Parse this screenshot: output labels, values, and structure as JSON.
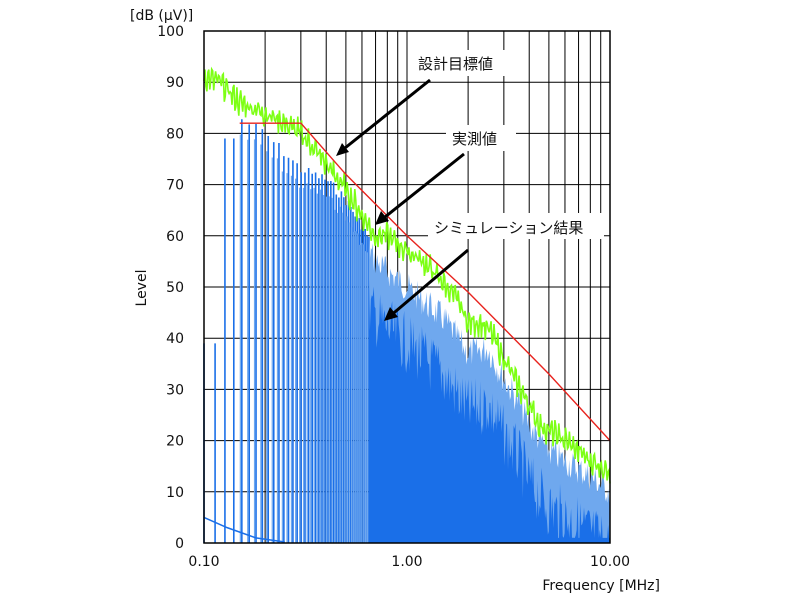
{
  "chart_data": {
    "type": "line",
    "y_unit_label": "[dB (μV)]",
    "ylabel": "Level",
    "xlabel": "Frequency [MHz]",
    "x_scale": "log",
    "xlim": [
      0.1,
      10
    ],
    "ylim": [
      0,
      100
    ],
    "grid": true,
    "x_tick_labels": [
      "0.10",
      "1.00",
      "10.00"
    ],
    "x_ticks": [
      0.1,
      1,
      10
    ],
    "y_ticks": [
      0,
      10,
      20,
      30,
      40,
      50,
      60,
      70,
      80,
      90,
      100
    ],
    "colors": {
      "limit": "#e8231e",
      "measured": "#7dff14",
      "simulation": "#1a6fe8",
      "simulation_light": "#6fa8ee",
      "grid": "#000000"
    },
    "series": [
      {
        "key": "limit",
        "x": [
          0.15,
          0.3,
          0.5,
          1.0,
          2.0,
          5.0,
          10.0
        ],
        "y": [
          82,
          82,
          72,
          60,
          49,
          33,
          20
        ]
      },
      {
        "key": "measured",
        "x": [
          0.1,
          0.12,
          0.15,
          0.2,
          0.25,
          0.3,
          0.35,
          0.4,
          0.5,
          0.6,
          0.7,
          0.8,
          1.0,
          1.2,
          1.5,
          1.8,
          2.0,
          2.3,
          2.6,
          3.0,
          3.5,
          4.0,
          4.5,
          5.0,
          6.0,
          7.0,
          8.0,
          10.0
        ],
        "y": [
          91,
          90,
          86,
          84,
          82,
          80,
          77,
          74,
          69,
          64,
          60,
          60,
          57,
          55,
          51,
          47,
          43,
          43,
          41,
          36,
          31,
          27,
          23,
          22,
          20,
          18,
          16,
          14
        ]
      },
      {
        "key": "simulation",
        "x": [
          0.15,
          0.2,
          0.3,
          0.4,
          0.5,
          0.6,
          0.7,
          0.8,
          1.0,
          1.5,
          2.0,
          2.5,
          3.0,
          3.5,
          4.0,
          5.0,
          6.0,
          8.0,
          10.0
        ],
        "y": [
          84,
          81,
          74,
          72,
          68,
          63,
          58,
          56,
          53,
          47,
          40,
          41,
          35,
          31,
          26,
          21,
          19,
          16,
          13
        ]
      }
    ],
    "annotations": [
      {
        "text": "設計目標値",
        "target": "limit"
      },
      {
        "text": "実測値",
        "target": "measured"
      },
      {
        "text": "シミュレーション結果",
        "target": "simulation"
      }
    ]
  }
}
